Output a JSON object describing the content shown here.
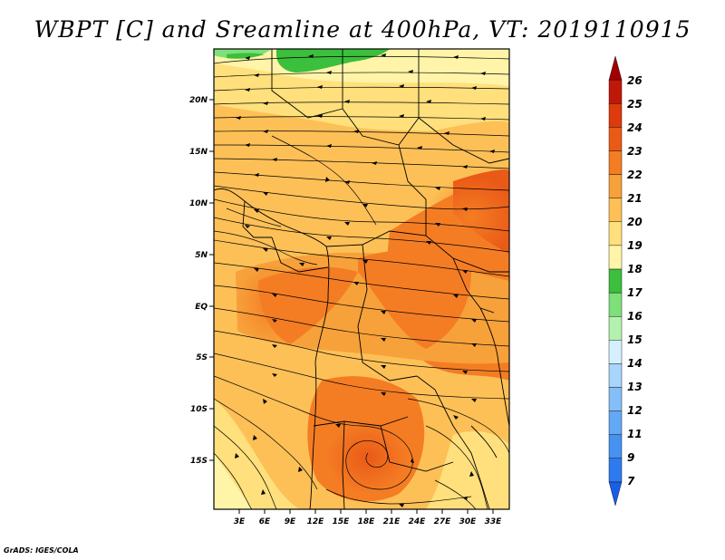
{
  "title": "WBPT [C] and Sreamline at 400hPa, VT: 2019110915",
  "credit": "GrADS: IGES/COLA",
  "map": {
    "lat_labels": [
      "20N",
      "15N",
      "10N",
      "5N",
      "EQ",
      "5S",
      "10S",
      "15S"
    ],
    "lon_labels": [
      "3E",
      "6E",
      "9E",
      "12E",
      "15E",
      "18E",
      "21E",
      "24E",
      "27E",
      "30E",
      "33E"
    ],
    "field": "Wet-bulb potential temperature",
    "overlay": "Streamlines"
  },
  "colorbar": {
    "labels": [
      "7",
      "9",
      "11",
      "12",
      "13",
      "14",
      "15",
      "16",
      "17",
      "18",
      "19",
      "20",
      "21",
      "22",
      "23",
      "24",
      "25",
      "26"
    ],
    "colors": [
      "#1a5ee8",
      "#2e7bf0",
      "#4592f0",
      "#62a8f5",
      "#86bff8",
      "#a8d5fb",
      "#d4f0ff",
      "#b3f2ae",
      "#7ee07a",
      "#3cbf3c",
      "#fff4a8",
      "#ffe07c",
      "#fdc057",
      "#f7a13a",
      "#f47d24",
      "#ea5a17",
      "#de3a0c",
      "#c01808",
      "#a00000"
    ]
  }
}
